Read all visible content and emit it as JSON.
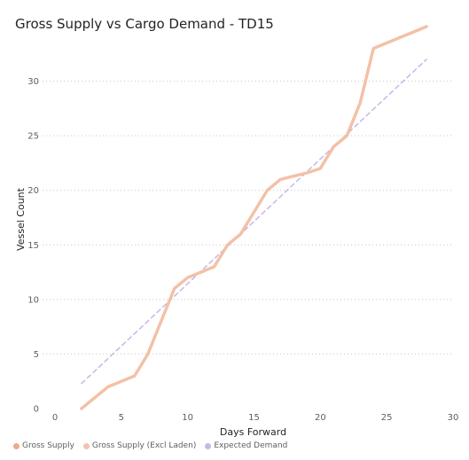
{
  "chart_data": {
    "type": "line",
    "title": "Gross Supply vs Cargo Demand - TD15",
    "xlabel": "Days Forward",
    "ylabel": "Vessel Count",
    "xlim": [
      0,
      30
    ],
    "ylim": [
      0,
      35
    ],
    "xticks": [
      0,
      5,
      10,
      15,
      20,
      25,
      30
    ],
    "yticks": [
      0,
      5,
      10,
      15,
      20,
      25,
      30
    ],
    "grid": "horizontal dotted",
    "legend_position": "bottom-left",
    "series": [
      {
        "name": "Gross Supply",
        "color": "#f0a987",
        "style": "solid",
        "x": [
          2,
          4,
          6,
          7,
          8,
          9,
          10,
          11,
          12,
          13,
          14,
          15,
          16,
          17,
          18,
          19,
          20,
          21,
          22,
          23,
          24,
          28
        ],
        "y": [
          0,
          2,
          3,
          5,
          8,
          11,
          12,
          12.5,
          13,
          15,
          16,
          18,
          20,
          21,
          21.3,
          21.6,
          22,
          24,
          25,
          28,
          33,
          35
        ]
      },
      {
        "name": "Gross Supply (Excl Laden)",
        "color": "#f3c3a8",
        "style": "solid",
        "x": [
          2,
          4,
          6,
          7,
          8,
          9,
          10,
          11,
          12,
          13,
          14,
          15,
          16,
          17,
          18,
          19,
          20,
          21,
          22,
          23,
          24,
          28
        ],
        "y": [
          0,
          2,
          3,
          5,
          8,
          11,
          12,
          12.5,
          13,
          15,
          16,
          18,
          20,
          21,
          21.3,
          21.6,
          22,
          24,
          25,
          28,
          33,
          35
        ]
      },
      {
        "name": "Expected Demand",
        "color": "#c5b8e6",
        "style": "dashed",
        "x": [
          2,
          28
        ],
        "y": [
          2.3,
          32
        ]
      }
    ]
  }
}
